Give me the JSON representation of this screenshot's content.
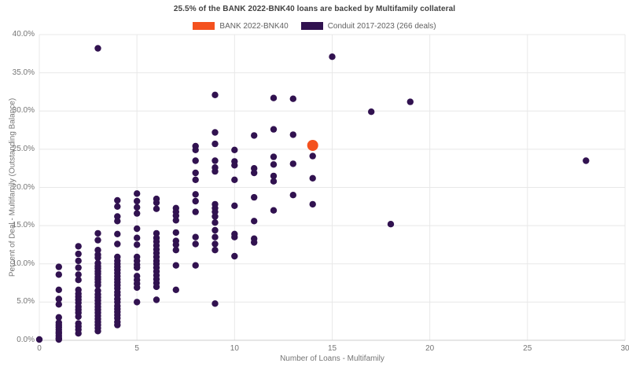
{
  "title": "25.5% of the BANK 2022-BNK40 loans are backed by Multifamily collateral",
  "legend": {
    "items": [
      {
        "label": "BANK 2022-BNK40",
        "color": "#F4511E"
      },
      {
        "label": "Conduit 2017-2023 (266 deals)",
        "color": "#311250"
      }
    ]
  },
  "axes": {
    "x": {
      "title": "Number of Loans - Multifamily",
      "ticks": [
        "0",
        "5",
        "10",
        "15",
        "20",
        "25",
        "30"
      ],
      "tick_values": [
        0,
        5,
        10,
        15,
        20,
        25,
        30
      ]
    },
    "y": {
      "title": "Percent of Deal - Multifamily (Outstanding Balance)",
      "ticks": [
        "0.0%",
        "5.0%",
        "10.0%",
        "15.0%",
        "20.0%",
        "25.0%",
        "30.0%",
        "35.0%",
        "40.0%"
      ],
      "tick_values": [
        0,
        5,
        10,
        15,
        20,
        25,
        30,
        35,
        40
      ]
    }
  },
  "colors": {
    "background": "#ffffff",
    "gridline": "#e8e8e8",
    "baseline": "#cccccc",
    "title_text": "#424242",
    "legend_text": "#616161",
    "axis_text": "#757575"
  },
  "chart_data": {
    "type": "scatter",
    "title": "25.5% of the BANK 2022-BNK40 loans are backed by Multifamily collateral",
    "xlabel": "Number of Loans - Multifamily",
    "ylabel": "Percent of Deal - Multifamily (Outstanding Balance)",
    "xlim": [
      0,
      30
    ],
    "ylim": [
      0,
      40
    ],
    "grid": true,
    "legend_position": "top",
    "series": [
      {
        "name": "BANK 2022-BNK40",
        "color": "#F4511E",
        "marker_radius": 7,
        "marker_name": "bank-data-point",
        "points": [
          [
            14,
            25.5
          ]
        ]
      },
      {
        "name": "Conduit 2017-2023 (266 deals)",
        "color": "#311250",
        "marker_radius": 4.2,
        "marker_name": "conduit-data-point",
        "points": [
          [
            0,
            0.1
          ],
          [
            1,
            9.6
          ],
          [
            1,
            8.6
          ],
          [
            1,
            6.6
          ],
          [
            1,
            5.4
          ],
          [
            1,
            4.7
          ],
          [
            1,
            3.0
          ],
          [
            1,
            2.3
          ],
          [
            1,
            2.0
          ],
          [
            1,
            1.7
          ],
          [
            1,
            1.4
          ],
          [
            1,
            1.1
          ],
          [
            1,
            0.9
          ],
          [
            1,
            0.6
          ],
          [
            1,
            0.3
          ],
          [
            1,
            0.1
          ],
          [
            2,
            12.3
          ],
          [
            2,
            11.3
          ],
          [
            2,
            10.4
          ],
          [
            2,
            9.5
          ],
          [
            2,
            8.6
          ],
          [
            2,
            7.9
          ],
          [
            2,
            6.6
          ],
          [
            2,
            6.1
          ],
          [
            2,
            5.7
          ],
          [
            2,
            5.3
          ],
          [
            2,
            4.9
          ],
          [
            2,
            4.4
          ],
          [
            2,
            4.0
          ],
          [
            2,
            3.6
          ],
          [
            2,
            3.1
          ],
          [
            2,
            2.2
          ],
          [
            2,
            1.8
          ],
          [
            2,
            1.4
          ],
          [
            2,
            0.9
          ],
          [
            3,
            38.2
          ],
          [
            3,
            14.0
          ],
          [
            3,
            13.1
          ],
          [
            3,
            11.8
          ],
          [
            3,
            11.2
          ],
          [
            3,
            10.8
          ],
          [
            3,
            10.1
          ],
          [
            3,
            9.7
          ],
          [
            3,
            9.4
          ],
          [
            3,
            9.0
          ],
          [
            3,
            8.7
          ],
          [
            3,
            8.3
          ],
          [
            3,
            8.0
          ],
          [
            3,
            7.6
          ],
          [
            3,
            7.2
          ],
          [
            3,
            6.5
          ],
          [
            3,
            6.0
          ],
          [
            3,
            5.6
          ],
          [
            3,
            5.2
          ],
          [
            3,
            4.8
          ],
          [
            3,
            4.4
          ],
          [
            3,
            4.0
          ],
          [
            3,
            3.6
          ],
          [
            3,
            3.2
          ],
          [
            3,
            2.8
          ],
          [
            3,
            2.4
          ],
          [
            3,
            2.0
          ],
          [
            3,
            1.6
          ],
          [
            3,
            1.2
          ],
          [
            4,
            18.3
          ],
          [
            4,
            17.5
          ],
          [
            4,
            16.2
          ],
          [
            4,
            15.6
          ],
          [
            4,
            13.9
          ],
          [
            4,
            12.6
          ],
          [
            4,
            10.9
          ],
          [
            4,
            10.4
          ],
          [
            4,
            10.0
          ],
          [
            4,
            9.6
          ],
          [
            4,
            9.2
          ],
          [
            4,
            8.8
          ],
          [
            4,
            8.4
          ],
          [
            4,
            8.0
          ],
          [
            4,
            7.6
          ],
          [
            4,
            7.2
          ],
          [
            4,
            6.8
          ],
          [
            4,
            6.3
          ],
          [
            4,
            5.9
          ],
          [
            4,
            5.4
          ],
          [
            4,
            5.0
          ],
          [
            4,
            4.5
          ],
          [
            4,
            4.1
          ],
          [
            4,
            3.7
          ],
          [
            4,
            3.3
          ],
          [
            4,
            2.9
          ],
          [
            4,
            2.4
          ],
          [
            4,
            2.0
          ],
          [
            5,
            19.2
          ],
          [
            5,
            18.2
          ],
          [
            5,
            17.4
          ],
          [
            5,
            16.6
          ],
          [
            5,
            14.6
          ],
          [
            5,
            13.4
          ],
          [
            5,
            12.5
          ],
          [
            5,
            10.9
          ],
          [
            5,
            10.4
          ],
          [
            5,
            9.9
          ],
          [
            5,
            9.5
          ],
          [
            5,
            8.4
          ],
          [
            5,
            7.9
          ],
          [
            5,
            7.4
          ],
          [
            5,
            6.9
          ],
          [
            5,
            5.0
          ],
          [
            6,
            18.5
          ],
          [
            6,
            18.0
          ],
          [
            6,
            17.2
          ],
          [
            6,
            14.0
          ],
          [
            6,
            13.4
          ],
          [
            6,
            12.9
          ],
          [
            6,
            12.4
          ],
          [
            6,
            11.9
          ],
          [
            6,
            11.4
          ],
          [
            6,
            10.9
          ],
          [
            6,
            10.4
          ],
          [
            6,
            10.0
          ],
          [
            6,
            9.5
          ],
          [
            6,
            9.0
          ],
          [
            6,
            8.5
          ],
          [
            6,
            8.0
          ],
          [
            6,
            7.5
          ],
          [
            6,
            7.0
          ],
          [
            6,
            5.3
          ],
          [
            7,
            17.3
          ],
          [
            7,
            16.8
          ],
          [
            7,
            16.3
          ],
          [
            7,
            15.7
          ],
          [
            7,
            14.1
          ],
          [
            7,
            13.0
          ],
          [
            7,
            12.5
          ],
          [
            7,
            11.8
          ],
          [
            7,
            9.8
          ],
          [
            7,
            6.6
          ],
          [
            8,
            25.4
          ],
          [
            8,
            24.9
          ],
          [
            8,
            23.5
          ],
          [
            8,
            21.9
          ],
          [
            8,
            21.0
          ],
          [
            8,
            19.1
          ],
          [
            8,
            18.2
          ],
          [
            8,
            16.8
          ],
          [
            8,
            13.5
          ],
          [
            8,
            12.6
          ],
          [
            8,
            9.8
          ],
          [
            9,
            32.1
          ],
          [
            9,
            27.2
          ],
          [
            9,
            25.7
          ],
          [
            9,
            23.5
          ],
          [
            9,
            22.6
          ],
          [
            9,
            22.1
          ],
          [
            9,
            17.8
          ],
          [
            9,
            17.3
          ],
          [
            9,
            16.8
          ],
          [
            9,
            16.2
          ],
          [
            9,
            15.4
          ],
          [
            9,
            14.4
          ],
          [
            9,
            13.5
          ],
          [
            9,
            12.6
          ],
          [
            9,
            11.8
          ],
          [
            9,
            4.8
          ],
          [
            10,
            24.9
          ],
          [
            10,
            23.4
          ],
          [
            10,
            22.9
          ],
          [
            10,
            21.0
          ],
          [
            10,
            17.6
          ],
          [
            10,
            13.9
          ],
          [
            10,
            13.5
          ],
          [
            10,
            11.0
          ],
          [
            11,
            26.8
          ],
          [
            11,
            22.5
          ],
          [
            11,
            21.9
          ],
          [
            11,
            18.7
          ],
          [
            11,
            15.6
          ],
          [
            11,
            13.3
          ],
          [
            11,
            12.8
          ],
          [
            12,
            31.7
          ],
          [
            12,
            27.6
          ],
          [
            12,
            24.0
          ],
          [
            12,
            23.0
          ],
          [
            12,
            21.5
          ],
          [
            12,
            20.8
          ],
          [
            12,
            17.0
          ],
          [
            13,
            31.6
          ],
          [
            13,
            26.9
          ],
          [
            13,
            23.1
          ],
          [
            13,
            19.0
          ],
          [
            14,
            24.1
          ],
          [
            14,
            21.2
          ],
          [
            14,
            17.8
          ],
          [
            15,
            37.1
          ],
          [
            17,
            29.9
          ],
          [
            18,
            15.2
          ],
          [
            19,
            31.2
          ],
          [
            28,
            23.5
          ]
        ]
      }
    ]
  }
}
